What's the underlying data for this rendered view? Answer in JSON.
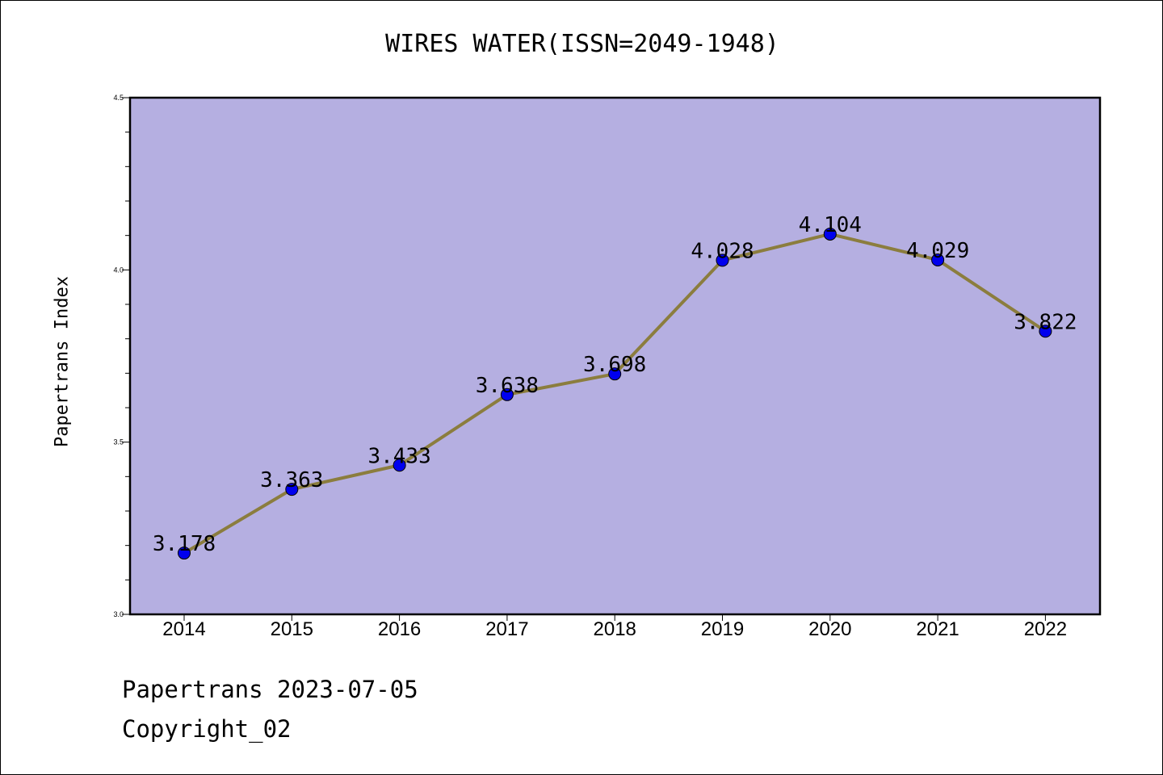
{
  "chart_data": {
    "type": "line",
    "title": "WIRES WATER(ISSN=2049-1948)",
    "xlabel": "",
    "ylabel": "Papertrans Index",
    "categories": [
      "2014",
      "2015",
      "2016",
      "2017",
      "2018",
      "2019",
      "2020",
      "2021",
      "2022"
    ],
    "series": [
      {
        "values": [
          3.178,
          3.363,
          3.433,
          3.638,
          3.698,
          4.028,
          4.104,
          4.029,
          3.822
        ],
        "data_labels": [
          "3.178",
          "3.363",
          "3.433",
          "3.638",
          "3.698",
          "4.028",
          "4.104",
          "4.029",
          "3.822"
        ],
        "line_color": "#8b7d3e",
        "marker_color": "#0000ee"
      }
    ],
    "ylim": [
      3.0,
      4.5
    ],
    "y_ticks": [
      "3.0",
      "3.5",
      "4.0",
      "4.5"
    ],
    "plot_background": "#b5afe1",
    "grid": false,
    "legend": "none"
  },
  "footer": {
    "date": "Papertrans 2023-07-05",
    "copyright": "Copyright_02"
  }
}
